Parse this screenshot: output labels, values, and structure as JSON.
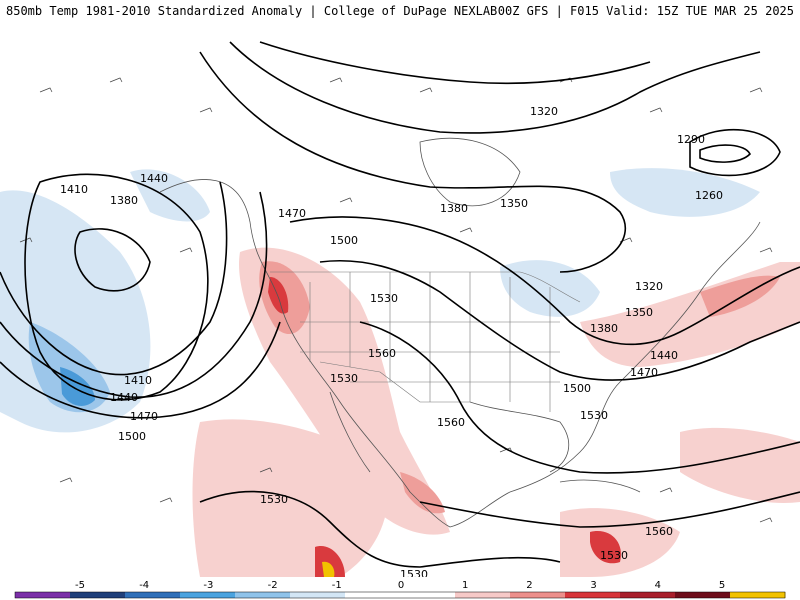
{
  "header": {
    "title_left": "850mb Temp 1981-2010 Standardized Anomaly | College of DuPage NEXLAB",
    "title_right": "00Z GFS | F015 Valid: 15Z TUE MAR 25 2025"
  },
  "contour_labels": [
    "1320",
    "1290",
    "1260",
    "1410",
    "1440",
    "1380",
    "1470",
    "1500",
    "1380",
    "1350",
    "1530",
    "1560",
    "1530",
    "1320",
    "1380",
    "1350",
    "1410",
    "1440",
    "1470",
    "1500",
    "1440",
    "1470",
    "1500",
    "1530",
    "1560",
    "1530",
    "1560",
    "1530",
    "1530"
  ],
  "colorbar": {
    "ticks": [
      "-5",
      "-4",
      "-3",
      "-2",
      "-1",
      "0",
      "1",
      "2",
      "3",
      "4",
      "5"
    ],
    "colors": [
      "#7b2fa8",
      "#1f3f7a",
      "#2f6fb8",
      "#4aa3df",
      "#8fc3ea",
      "#d3e6f5",
      "#ffffff",
      "#ffffff",
      "#f6c9c7",
      "#ec8f8b",
      "#d7353a",
      "#a81e2b",
      "#6e0d1a",
      "#f2c200"
    ]
  },
  "anomaly_colors": {
    "warm_light": "#f7d1cf",
    "warm_mid": "#ee9e9a",
    "warm_strong": "#d93a3e",
    "warm_extreme": "#a51b28",
    "cool_light": "#d6e6f4",
    "cool_mid": "#9cc6ea",
    "cool_strong": "#4a9ad8",
    "yellow": "#f2c200"
  }
}
